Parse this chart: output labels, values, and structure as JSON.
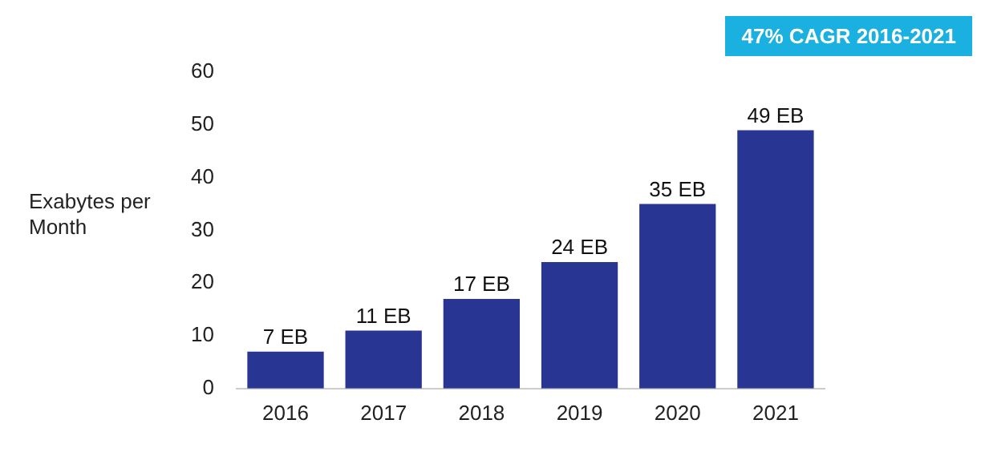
{
  "chart_data": {
    "type": "bar",
    "ylabel": "Exabytes per Month",
    "categories": [
      "2016",
      "2017",
      "2018",
      "2019",
      "2020",
      "2021"
    ],
    "values": [
      7,
      11,
      17,
      24,
      35,
      49
    ],
    "color": "#283593",
    "value_labels": [
      "7 EB",
      "11 EB",
      "17 EB",
      "24 EB",
      "35 EB",
      "49 EB"
    ],
    "ylim": [
      0,
      60
    ],
    "yticks": [
      0,
      10,
      20,
      30,
      40,
      50,
      60
    ],
    "grid": false,
    "legend": false,
    "annotations": [
      "47% CAGR 2016-2021"
    ]
  }
}
